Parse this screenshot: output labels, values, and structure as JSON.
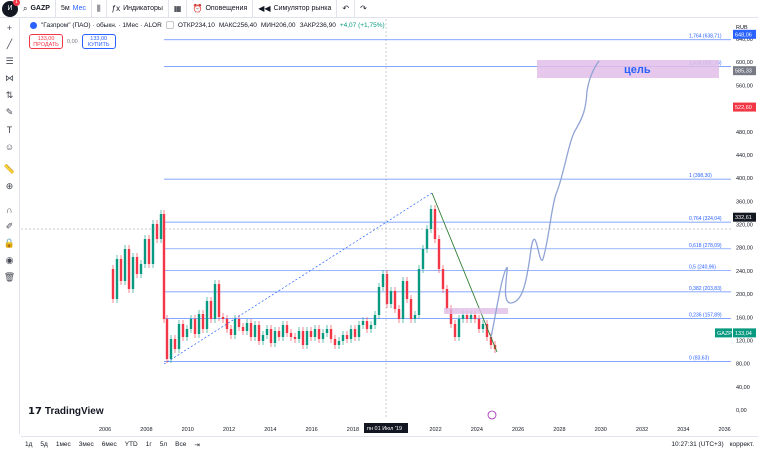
{
  "topbar": {
    "logo_badge": "1",
    "symbol": "GAZP",
    "interval": "5м",
    "period": "Мес",
    "indicators_label": "Индикаторы",
    "alerts_label": "Оповещения",
    "replay_label": "Симулятор рынка"
  },
  "legend": {
    "title": "\"Газпром\" (ПАО) · обыкн. · 1Мес · ALOR",
    "open": "ОТКР234,10",
    "high": "МАКС256,40",
    "low": "МИН206,00",
    "close": "ЗАКР236,90",
    "change": "+4,07 (+1,75%)"
  },
  "trade": {
    "sell_price": "133,00",
    "sell_label": "ПРОДАТЬ",
    "spread": "0,00",
    "buy_price": "133,00",
    "buy_label": "КУПИТЬ"
  },
  "axis": {
    "currency": "RUB",
    "y_ticks": [
      "640,00",
      "600,00",
      "560,00",
      "520,00",
      "480,00",
      "440,00",
      "400,00",
      "360,00",
      "320,00",
      "280,00",
      "240,00",
      "200,00",
      "160,00",
      "120,00",
      "80,00",
      "40,00",
      "0,00"
    ],
    "x_ticks": [
      "2006",
      "2008",
      "2010",
      "2012",
      "2014",
      "2016",
      "2018",
      "2020",
      "2022",
      "2024",
      "2026",
      "2028",
      "2030",
      "2032",
      "2034",
      "2036"
    ],
    "crosshair_date": "пн 01 Июл '19",
    "price_tags": {
      "target": "648,06",
      "fib": "585,33",
      "red": "522,60",
      "level": "332,61",
      "current": "133,04",
      "current_symbol": "GAZP"
    }
  },
  "fib_levels": [
    {
      "label": "1,764 (638,71)",
      "price": 638.71
    },
    {
      "label": "1,618 (592,76)",
      "price": 592.76
    },
    {
      "label": "1 (398,30)",
      "price": 398.3
    },
    {
      "label": "0,764 (324,04)",
      "price": 324.04
    },
    {
      "label": "0,618 (278,09)",
      "price": 278.09
    },
    {
      "label": "0,5 (240,96)",
      "price": 240.96
    },
    {
      "label": "0,382 (203,83)",
      "price": 203.83
    },
    {
      "label": "0,236 (157,89)",
      "price": 157.89
    },
    {
      "label": "0 (83,63)",
      "price": 83.63
    }
  ],
  "annotation": {
    "target_text": "цель"
  },
  "branding": {
    "tv": "TradingView"
  },
  "bottom": {
    "ranges": [
      "1д",
      "5д",
      "1мес",
      "3мес",
      "6мес",
      "YTD",
      "1г",
      "5л",
      "Все"
    ],
    "time": "10:27:31 (UTC+3)",
    "adj": "коррект."
  },
  "colors": {
    "up": "#089981",
    "down": "#f23645",
    "fib": "#2962ff",
    "target_box": "#e1bee7",
    "path": "#90a4d4"
  }
}
